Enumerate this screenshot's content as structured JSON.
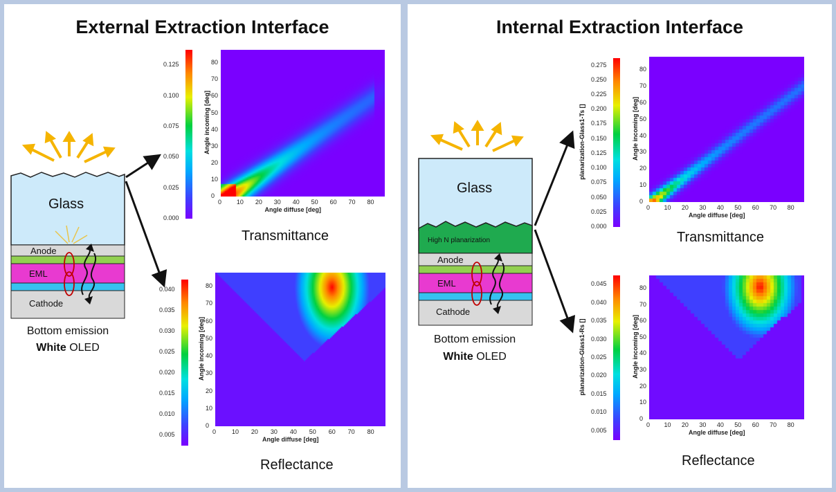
{
  "left": {
    "title": "External Extraction Interface",
    "stack": {
      "glass": "Glass",
      "anode": "Anode",
      "eml": "EML",
      "cathode": "Cathode"
    },
    "caption_line1": "Bottom emission",
    "caption_bold": "White",
    "caption_rest": " OLED",
    "trans_label": "Transmittance",
    "refl_label": "Reflectance",
    "trans_plot": {
      "xlabel": "Angle diffuse [deg]",
      "ylabel": "Angle incoming [deg]",
      "xticks": [
        "0",
        "10",
        "20",
        "30",
        "40",
        "50",
        "60",
        "70",
        "80"
      ],
      "yticks": [
        "0",
        "10",
        "20",
        "30",
        "40",
        "50",
        "60",
        "70",
        "80"
      ],
      "cticks": [
        "0.000",
        "0.025",
        "0.050",
        "0.075",
        "0.100",
        "0.125"
      ]
    },
    "refl_plot": {
      "xlabel": "Angle diffuse [deg]",
      "ylabel": "Angle incoming [deg]",
      "xticks": [
        "0",
        "10",
        "20",
        "30",
        "40",
        "50",
        "60",
        "70",
        "80"
      ],
      "yticks": [
        "0",
        "10",
        "20",
        "30",
        "40",
        "50",
        "60",
        "70",
        "80"
      ],
      "cticks": [
        "0.005",
        "0.010",
        "0.015",
        "0.020",
        "0.025",
        "0.030",
        "0.035",
        "0.040"
      ]
    }
  },
  "right": {
    "title": "Internal Extraction Interface",
    "stack": {
      "glass": "Glass",
      "planarization": "High N planarization",
      "anode": "Anode",
      "eml": "EML",
      "cathode": "Cathode"
    },
    "caption_line1": "Bottom emission",
    "caption_bold": "White",
    "caption_rest": " OLED",
    "trans_label": "Transmittance",
    "refl_label": "Reflectance",
    "trans_plot": {
      "xlabel": "Angle diffuse [deg]",
      "ylabel": "Angle incoming [deg]",
      "clabel": "planarization-Glass1-Ts []",
      "xticks": [
        "0",
        "10",
        "20",
        "30",
        "40",
        "50",
        "60",
        "70",
        "80"
      ],
      "yticks": [
        "0",
        "10",
        "20",
        "30",
        "40",
        "50",
        "60",
        "70",
        "80"
      ],
      "cticks": [
        "0.000",
        "0.025",
        "0.050",
        "0.075",
        "0.100",
        "0.125",
        "0.150",
        "0.175",
        "0.200",
        "0.225",
        "0.250",
        "0.275"
      ]
    },
    "refl_plot": {
      "xlabel": "Angle diffuse [deg]",
      "ylabel": "Angle incoming [deg]",
      "clabel": "planarization-Glass1-Rs []",
      "xticks": [
        "0",
        "10",
        "20",
        "30",
        "40",
        "50",
        "60",
        "70",
        "80"
      ],
      "yticks": [
        "0",
        "10",
        "20",
        "30",
        "40",
        "50",
        "60",
        "70",
        "80"
      ],
      "cticks": [
        "0.005",
        "0.010",
        "0.015",
        "0.020",
        "0.025",
        "0.030",
        "0.035",
        "0.040",
        "0.045"
      ]
    }
  },
  "colors": {
    "glass": "#cdeafa",
    "planarization": "#1faa4f",
    "anode": "#d9d9d9",
    "green_layer": "#92d050",
    "eml": "#e83ad0",
    "blue_layer": "#36c2f0",
    "cathode": "#d9d9d9",
    "light": "#f5b400"
  }
}
